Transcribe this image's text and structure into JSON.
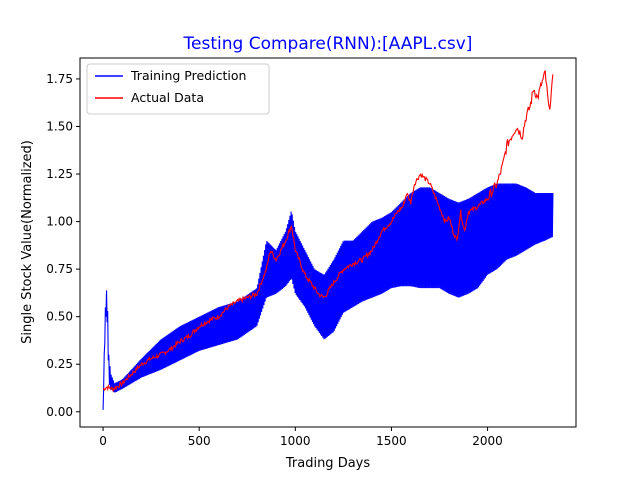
{
  "chart_data": {
    "type": "line",
    "title": "Testing Compare(RNN):[AAPL.csv]",
    "title_color": "#0000ff",
    "xlabel": "Trading Days",
    "ylabel": "Single Stock Value(Normalized)",
    "xlim": [
      -120,
      2460
    ],
    "ylim": [
      -0.08,
      1.86
    ],
    "xticks": [
      0,
      500,
      1000,
      1500,
      2000
    ],
    "yticks": [
      0.0,
      0.25,
      0.5,
      0.75,
      1.0,
      1.25,
      1.5,
      1.75
    ],
    "xtick_labels": [
      "0",
      "500",
      "1000",
      "1500",
      "2000"
    ],
    "ytick_labels": [
      "0.00",
      "0.25",
      "0.50",
      "0.75",
      "1.00",
      "1.25",
      "1.50",
      "1.75"
    ],
    "grid": false,
    "legend_position": "top-left",
    "series": [
      {
        "name": "Training Prediction",
        "color": "#0000ff",
        "style": "oscillating band (upper/lower envelope)",
        "x": [
          0,
          10,
          15,
          20,
          25,
          30,
          40,
          60,
          100,
          200,
          300,
          400,
          500,
          600,
          700,
          800,
          850,
          900,
          950,
          980,
          1000,
          1050,
          1100,
          1150,
          1200,
          1250,
          1300,
          1350,
          1400,
          1450,
          1500,
          1550,
          1600,
          1650,
          1700,
          1750,
          1800,
          1850,
          1900,
          1950,
          2000,
          2050,
          2100,
          2150,
          2200,
          2250,
          2300,
          2340
        ],
        "upper": [
          0.01,
          0.5,
          0.62,
          0.65,
          0.5,
          0.3,
          0.2,
          0.15,
          0.17,
          0.28,
          0.38,
          0.45,
          0.5,
          0.55,
          0.58,
          0.65,
          0.9,
          0.85,
          0.95,
          1.06,
          0.95,
          0.85,
          0.75,
          0.72,
          0.8,
          0.9,
          0.9,
          0.95,
          1.0,
          1.02,
          1.05,
          1.1,
          1.15,
          1.18,
          1.18,
          1.15,
          1.12,
          1.1,
          1.12,
          1.15,
          1.18,
          1.2,
          1.2,
          1.2,
          1.18,
          1.15,
          1.15,
          1.15
        ],
        "lower": [
          0.01,
          0.4,
          0.5,
          0.5,
          0.35,
          0.15,
          0.12,
          0.1,
          0.12,
          0.18,
          0.22,
          0.27,
          0.32,
          0.35,
          0.38,
          0.45,
          0.6,
          0.62,
          0.66,
          0.7,
          0.62,
          0.55,
          0.45,
          0.38,
          0.42,
          0.52,
          0.55,
          0.58,
          0.6,
          0.62,
          0.65,
          0.66,
          0.66,
          0.65,
          0.65,
          0.65,
          0.62,
          0.6,
          0.62,
          0.65,
          0.72,
          0.75,
          0.8,
          0.82,
          0.85,
          0.88,
          0.9,
          0.92
        ]
      },
      {
        "name": "Actual Data",
        "color": "#ff0000",
        "x": [
          0,
          20,
          50,
          70,
          100,
          150,
          200,
          250,
          300,
          350,
          400,
          450,
          500,
          550,
          600,
          650,
          700,
          750,
          800,
          850,
          870,
          900,
          950,
          980,
          1000,
          1050,
          1100,
          1120,
          1150,
          1200,
          1250,
          1300,
          1350,
          1400,
          1450,
          1500,
          1530,
          1560,
          1580,
          1600,
          1620,
          1650,
          1680,
          1700,
          1720,
          1740,
          1760,
          1780,
          1800,
          1820,
          1840,
          1860,
          1880,
          1900,
          1950,
          2000,
          2050,
          2080,
          2100,
          2150,
          2180,
          2200,
          2220,
          2240,
          2260,
          2280,
          2300,
          2320,
          2340
        ],
        "y": [
          0.12,
          0.13,
          0.12,
          0.13,
          0.15,
          0.2,
          0.25,
          0.28,
          0.3,
          0.33,
          0.37,
          0.4,
          0.45,
          0.48,
          0.5,
          0.55,
          0.58,
          0.6,
          0.62,
          0.75,
          0.85,
          0.8,
          0.9,
          0.98,
          0.85,
          0.72,
          0.65,
          0.62,
          0.6,
          0.68,
          0.75,
          0.78,
          0.8,
          0.85,
          0.95,
          1.0,
          1.05,
          1.08,
          1.15,
          1.1,
          1.2,
          1.25,
          1.22,
          1.2,
          1.15,
          1.1,
          1.05,
          1.0,
          1.02,
          0.95,
          0.9,
          1.05,
          0.95,
          1.05,
          1.08,
          1.12,
          1.2,
          1.3,
          1.4,
          1.5,
          1.45,
          1.55,
          1.6,
          1.7,
          1.65,
          1.72,
          1.78,
          1.58,
          1.75
        ]
      }
    ]
  }
}
